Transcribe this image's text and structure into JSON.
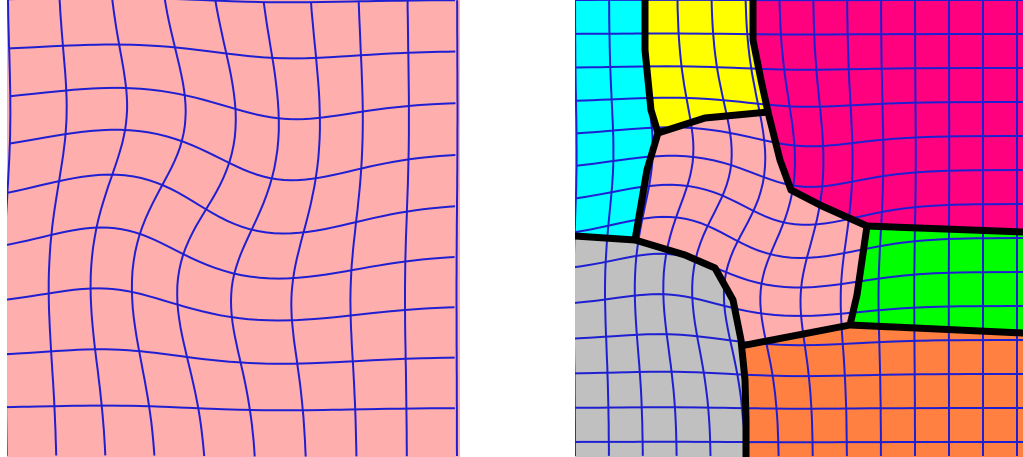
{
  "colors": {
    "background": "#ffffff",
    "mesh_line": "#1f1fd2",
    "boundary": "#000000",
    "pink": "#ffaeae",
    "cyan": "#00ffff",
    "yellow": "#ffff00",
    "magenta": "#ff007f",
    "gray": "#c0c0c0",
    "green": "#00ff00",
    "orange": "#ff8040"
  },
  "left_panel": {
    "region_color": "pink"
  },
  "right_panel": {
    "regions": [
      "cyan",
      "yellow",
      "magenta",
      "pink",
      "gray",
      "green",
      "orange"
    ]
  }
}
